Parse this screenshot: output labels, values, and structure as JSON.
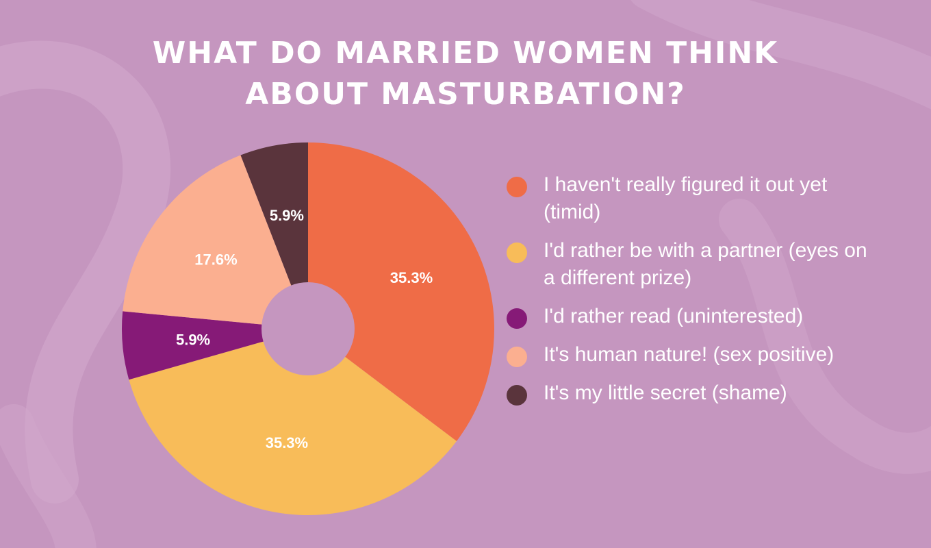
{
  "title_lines": [
    "WHAT DO MARRIED WOMEN THINK",
    "ABOUT MASTURBATION?"
  ],
  "colors": {
    "background": "#c596bf",
    "text": "#ffffff"
  },
  "chart_data": {
    "type": "pie",
    "title": "WHAT DO MARRIED WOMEN THINK ABOUT MASTURBATION?",
    "donut": true,
    "slices": [
      {
        "label": "I haven't really figured it out yet (timid)",
        "value": 35.3,
        "data_label": "35.3%",
        "color": "#ef6c47"
      },
      {
        "label": "I'd rather be with a partner (eyes on a different prize)",
        "value": 35.3,
        "data_label": "35.3%",
        "color": "#f8bc59"
      },
      {
        "label": "I'd rather read (uninterested)",
        "value": 5.9,
        "data_label": "5.9%",
        "color": "#861a77"
      },
      {
        "label": "It's human nature! (sex positive)",
        "value": 17.6,
        "data_label": "17.6%",
        "color": "#fbaf90"
      },
      {
        "label": "It's my little secret (shame)",
        "value": 5.9,
        "data_label": "5.9%",
        "color": "#5a343c"
      }
    ],
    "legend_position": "right"
  }
}
